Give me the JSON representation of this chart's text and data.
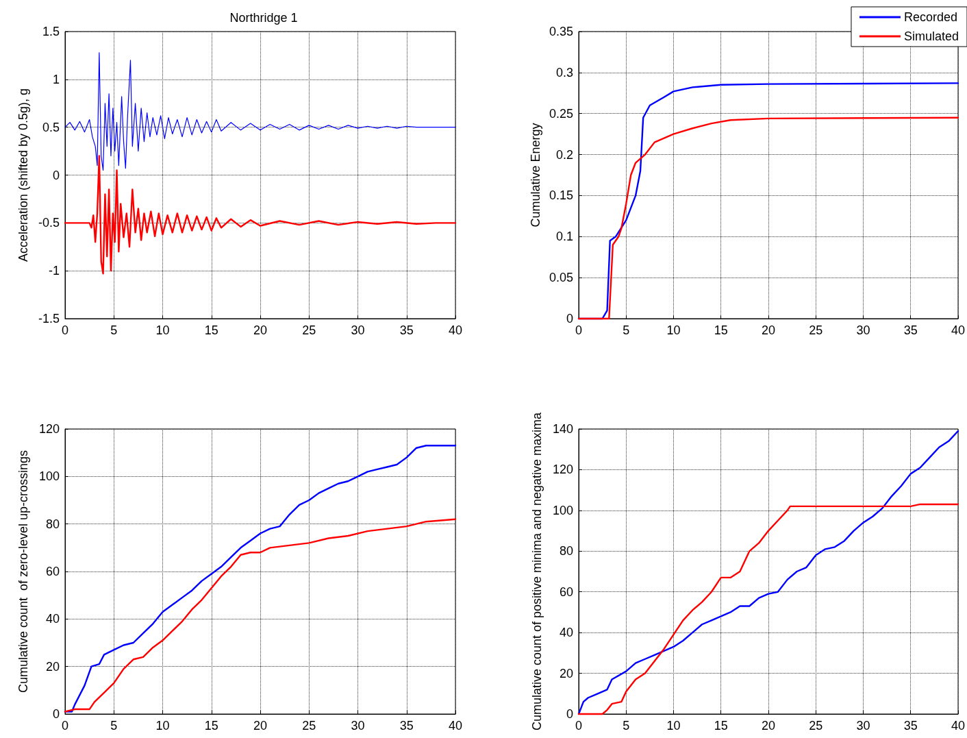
{
  "chart_data": [
    {
      "type": "line",
      "title": "Northridge 1",
      "ylabel": "Acceleration (shifted by 0.5g), g",
      "xlim": [
        0,
        40
      ],
      "xticks": [
        0,
        5,
        10,
        15,
        20,
        25,
        30,
        35,
        40
      ],
      "ylim": [
        -1.5,
        1.5
      ],
      "yticks": [
        -1.5,
        -1,
        -0.5,
        0,
        0.5,
        1,
        1.5
      ],
      "grid": true,
      "legend": false,
      "marker": "none",
      "line_style": "solid",
      "series": [
        {
          "color": "#0000ff",
          "x": [
            0,
            0.5,
            1,
            1.5,
            2,
            2.5,
            2.8,
            3.1,
            3.3,
            3.5,
            3.7,
            3.9,
            4.1,
            4.3,
            4.5,
            4.7,
            4.9,
            5.1,
            5.3,
            5.5,
            5.8,
            6,
            6.2,
            6.4,
            6.7,
            6.9,
            7.2,
            7.5,
            7.8,
            8.1,
            8.4,
            8.7,
            9,
            9.4,
            9.8,
            10.2,
            10.6,
            11,
            11.5,
            12,
            12.5,
            13,
            13.5,
            14,
            14.5,
            15,
            15.5,
            16,
            17,
            18,
            19,
            20,
            21,
            22,
            23,
            24,
            25,
            26,
            27,
            28,
            29,
            30,
            31,
            32,
            33,
            34,
            35,
            36,
            38,
            40
          ],
          "values": [
            0.5,
            0.55,
            0.47,
            0.56,
            0.45,
            0.58,
            0.4,
            0.3,
            0.1,
            1.28,
            0.2,
            0.05,
            0.75,
            0.3,
            0.85,
            0.2,
            0.7,
            0.25,
            0.55,
            0.1,
            0.82,
            0.35,
            0.07,
            0.6,
            1.2,
            0.3,
            0.75,
            0.25,
            0.7,
            0.35,
            0.65,
            0.4,
            0.6,
            0.42,
            0.62,
            0.38,
            0.6,
            0.43,
            0.58,
            0.4,
            0.6,
            0.42,
            0.58,
            0.44,
            0.56,
            0.45,
            0.58,
            0.46,
            0.55,
            0.47,
            0.54,
            0.47,
            0.53,
            0.48,
            0.53,
            0.47,
            0.52,
            0.48,
            0.52,
            0.48,
            0.52,
            0.49,
            0.51,
            0.49,
            0.51,
            0.49,
            0.51,
            0.5,
            0.5,
            0.5
          ]
        },
        {
          "color": "#ff0000",
          "x": [
            0,
            1,
            2,
            2.5,
            2.7,
            2.9,
            3.1,
            3.3,
            3.5,
            3.7,
            3.9,
            4.1,
            4.3,
            4.5,
            4.7,
            4.9,
            5.1,
            5.3,
            5.5,
            5.7,
            6,
            6.3,
            6.6,
            6.9,
            7.2,
            7.5,
            7.8,
            8.1,
            8.4,
            8.8,
            9.2,
            9.6,
            10,
            10.5,
            11,
            11.5,
            12,
            12.5,
            13,
            13.5,
            14,
            14.5,
            15,
            15.5,
            16,
            17,
            18,
            19,
            20,
            22,
            24,
            26,
            28,
            30,
            32,
            34,
            36,
            38,
            40
          ],
          "values": [
            -0.5,
            -0.5,
            -0.5,
            -0.5,
            -0.55,
            -0.42,
            -0.7,
            -0.4,
            0.2,
            -0.9,
            -1.03,
            -0.2,
            -0.85,
            -0.15,
            -1,
            -0.4,
            -0.7,
            0.05,
            -0.8,
            -0.3,
            -0.65,
            -0.4,
            -0.75,
            -0.15,
            -0.6,
            -0.35,
            -0.68,
            -0.4,
            -0.6,
            -0.38,
            -0.64,
            -0.4,
            -0.62,
            -0.42,
            -0.6,
            -0.4,
            -0.6,
            -0.42,
            -0.58,
            -0.43,
            -0.57,
            -0.44,
            -0.58,
            -0.45,
            -0.55,
            -0.46,
            -0.54,
            -0.47,
            -0.53,
            -0.48,
            -0.52,
            -0.48,
            -0.52,
            -0.49,
            -0.51,
            -0.49,
            -0.51,
            -0.5,
            -0.5
          ]
        }
      ]
    },
    {
      "type": "line",
      "ylabel": "Cumulative Energy",
      "xlim": [
        0,
        40
      ],
      "xticks": [
        0,
        5,
        10,
        15,
        20,
        25,
        30,
        35,
        40
      ],
      "ylim": [
        0,
        0.35
      ],
      "yticks": [
        0,
        0.05,
        0.1,
        0.15,
        0.2,
        0.25,
        0.3,
        0.35
      ],
      "grid": true,
      "legend": "top right",
      "marker": "none",
      "line_style": "solid",
      "series": [
        {
          "name": "Recorded",
          "color": "#0000ff",
          "x": [
            0,
            2.5,
            3,
            3.3,
            3.9,
            5,
            6,
            6.5,
            6.8,
            7.5,
            9,
            10,
            12,
            15,
            20,
            40
          ],
          "values": [
            0,
            0,
            0.01,
            0.095,
            0.1,
            0.12,
            0.15,
            0.18,
            0.245,
            0.26,
            0.27,
            0.277,
            0.282,
            0.285,
            0.286,
            0.287
          ]
        },
        {
          "name": "Simulated",
          "color": "#ff0000",
          "x": [
            0,
            3.2,
            3.6,
            4.2,
            4.5,
            5,
            5.5,
            6,
            7,
            8,
            10,
            12,
            14,
            16,
            20,
            40
          ],
          "values": [
            0,
            0,
            0.09,
            0.1,
            0.11,
            0.14,
            0.175,
            0.19,
            0.2,
            0.215,
            0.225,
            0.232,
            0.238,
            0.242,
            0.244,
            0.245
          ]
        }
      ]
    },
    {
      "type": "line",
      "ylabel": "Cumulative count  of zero-level up-crossings",
      "xlim": [
        0,
        40
      ],
      "xticks": [
        0,
        5,
        10,
        15,
        20,
        25,
        30,
        35,
        40
      ],
      "ylim": [
        0,
        120
      ],
      "yticks": [
        0,
        20,
        40,
        60,
        80,
        100,
        120
      ],
      "grid": true,
      "legend": false,
      "marker": "none",
      "line_style": "solid",
      "series": [
        {
          "color": "#0000ff",
          "x": [
            0,
            0.7,
            1,
            2,
            2.7,
            3.5,
            4,
            5,
            6,
            7,
            8,
            9,
            10,
            11,
            12,
            13,
            14,
            15,
            16,
            17,
            18,
            19,
            20,
            21,
            22,
            23,
            24,
            25,
            26,
            27,
            28,
            29,
            30,
            31,
            32,
            33,
            34,
            35,
            36,
            37,
            40
          ],
          "values": [
            1,
            1,
            4,
            12,
            20,
            21,
            25,
            27,
            29,
            30,
            34,
            38,
            43,
            46,
            49,
            52,
            56,
            59,
            62,
            66,
            70,
            73,
            76,
            78,
            79,
            84,
            88,
            90,
            93,
            95,
            97,
            98,
            100,
            102,
            103,
            104,
            105,
            108,
            112,
            113,
            113
          ]
        },
        {
          "color": "#ff0000",
          "x": [
            0,
            1,
            2.5,
            3,
            4,
            5,
            6,
            7,
            8,
            9,
            10,
            11,
            12,
            13,
            14,
            15,
            16,
            17,
            18,
            19,
            20,
            21,
            23,
            25,
            27,
            29,
            31,
            33,
            35,
            37,
            40
          ],
          "values": [
            1,
            2,
            2,
            5,
            9,
            13,
            19,
            23,
            24,
            28,
            31,
            35,
            39,
            44,
            48,
            53,
            58,
            62,
            67,
            68,
            68,
            70,
            71,
            72,
            74,
            75,
            77,
            78,
            79,
            81,
            82
          ]
        }
      ]
    },
    {
      "type": "line",
      "ylabel": "Cumulative count of positive minima and negative maxima",
      "xlim": [
        0,
        40
      ],
      "xticks": [
        0,
        5,
        10,
        15,
        20,
        25,
        30,
        35,
        40
      ],
      "ylim": [
        0,
        140
      ],
      "yticks": [
        0,
        20,
        40,
        60,
        80,
        100,
        120,
        140
      ],
      "grid": true,
      "legend": false,
      "marker": "none",
      "line_style": "solid",
      "series": [
        {
          "color": "#0000ff",
          "x": [
            0,
            0.5,
            1,
            2,
            3,
            3.5,
            5,
            6,
            7,
            8,
            9,
            10,
            11,
            12,
            13,
            14,
            15,
            16,
            17,
            18,
            19,
            20,
            21,
            22,
            23,
            24,
            25,
            26,
            27,
            28,
            29,
            30,
            31,
            32,
            33,
            34,
            35,
            36,
            37,
            38,
            39,
            40
          ],
          "values": [
            0,
            6,
            8,
            10,
            12,
            17,
            21,
            25,
            27,
            29,
            31,
            33,
            36,
            40,
            44,
            46,
            48,
            50,
            53,
            53,
            57,
            59,
            60,
            66,
            70,
            72,
            78,
            81,
            82,
            85,
            90,
            94,
            97,
            101,
            107,
            112,
            118,
            121,
            126,
            131,
            134,
            139
          ]
        },
        {
          "color": "#ff0000",
          "x": [
            0,
            2.5,
            3,
            3.5,
            4.5,
            5,
            6,
            7,
            8,
            9,
            10,
            11,
            12,
            13,
            14,
            15,
            16,
            17,
            18,
            19,
            20,
            21,
            22,
            22.3,
            35,
            36,
            40
          ],
          "values": [
            0,
            0,
            2,
            5,
            6,
            11,
            17,
            20,
            26,
            32,
            39,
            46,
            51,
            55,
            60,
            67,
            67,
            70,
            80,
            84,
            90,
            95,
            100,
            102,
            102,
            103,
            103
          ]
        }
      ]
    }
  ]
}
